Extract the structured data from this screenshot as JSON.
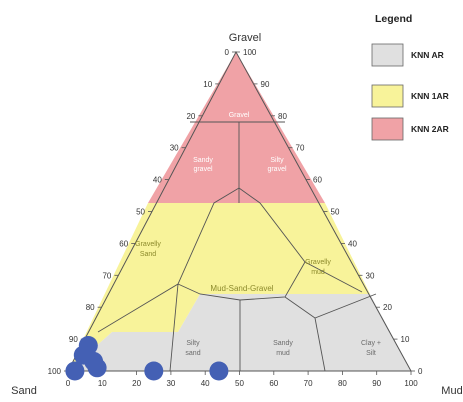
{
  "corners": {
    "top": "Gravel",
    "left": "Sand",
    "right": "Mud"
  },
  "left_axis_ticks": [
    "0",
    "10",
    "20",
    "30",
    "40",
    "50",
    "60",
    "70",
    "80",
    "90",
    "100"
  ],
  "right_axis_ticks": [
    "100",
    "90",
    "80",
    "70",
    "60",
    "50",
    "40",
    "30",
    "20",
    "10",
    "0"
  ],
  "bottom_axis_ticks": [
    "0",
    "10",
    "20",
    "30",
    "40",
    "50",
    "60",
    "70",
    "80",
    "90",
    "100"
  ],
  "zone_labels": {
    "gravel": "Gravel",
    "sandy_gravel": [
      "Sandy",
      "gravel"
    ],
    "silty_gravel": [
      "Silty",
      "gravel"
    ],
    "gravelly_sand": [
      "Gravelly",
      "Sand"
    ],
    "gravelly_mud": [
      "Gravelly",
      "mud"
    ],
    "mud_sand_gravel": "Mud-Sand-Gravel",
    "silty_sand": [
      "Silty",
      "sand"
    ],
    "sandy_mud": [
      "Sandy",
      "mud"
    ],
    "clay_silt": [
      "Clay +",
      "Silt"
    ]
  },
  "legend": {
    "title": "Legend",
    "items": [
      {
        "label": "KNN AR",
        "color": "#e0e0e0"
      },
      {
        "label": "KNN 1AR",
        "color": "#f8f39a"
      },
      {
        "label": "KNN 2AR",
        "color": "#f0a2a6"
      }
    ]
  },
  "colors": {
    "knn_ar": "#e0e0e0",
    "knn_1ar": "#f8f39a",
    "knn_2ar": "#f0a2a6",
    "sample_marker": "#4460b4"
  },
  "samples": [
    {
      "gravel": 8,
      "mud": 2
    },
    {
      "gravel": 5,
      "mud": 2
    },
    {
      "gravel": 3,
      "mud": 6
    },
    {
      "gravel": 1,
      "mud": 8
    },
    {
      "gravel": 0,
      "mud": 2
    },
    {
      "gravel": 0,
      "mud": 25
    },
    {
      "gravel": 0,
      "mud": 44
    }
  ]
}
